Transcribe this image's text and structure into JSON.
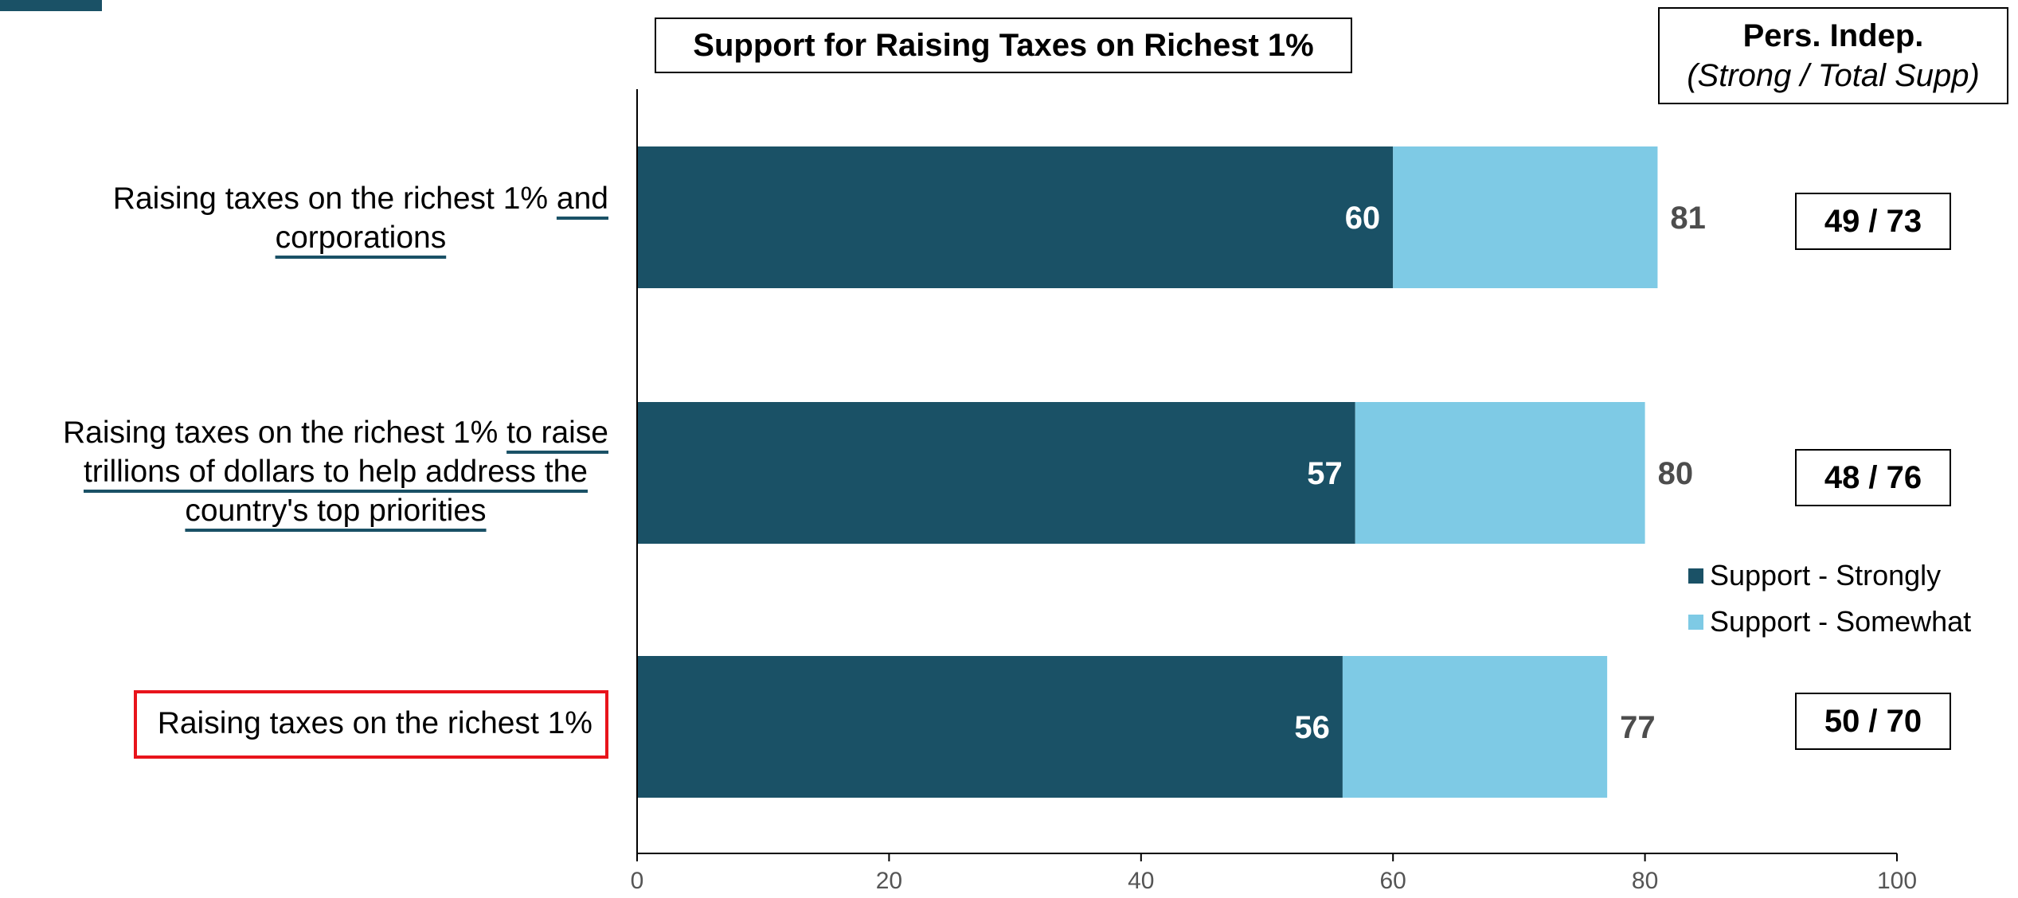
{
  "chart_data": {
    "type": "bar",
    "orientation": "horizontal",
    "stacked": true,
    "title": "Support for Raising Taxes on Richest 1%",
    "categories": [
      "Raising taxes on the richest 1% and corporations",
      "Raising taxes on the richest 1% to raise trillions of dollars to help address the country's top priorities",
      "Raising taxes on the richest 1%"
    ],
    "series": [
      {
        "name": "Support - Strongly",
        "color": "#1a5166",
        "values": [
          60,
          57,
          56
        ]
      },
      {
        "name": "Support - Somewhat",
        "color": "#7ecae5",
        "values": [
          21,
          23,
          21
        ]
      }
    ],
    "totals": [
      81,
      80,
      77
    ],
    "xlim": [
      0,
      100
    ],
    "xticks": [
      0,
      20,
      40,
      60,
      80,
      100
    ],
    "legend_position": "right",
    "grid": false,
    "highlighted_category": "Raising taxes on the richest 1%"
  },
  "labels": {
    "row0_lead": "Raising taxes on the richest 1% ",
    "row0_under1": "and",
    "row0_under2": "corporations",
    "row1_lead": "Raising taxes on the richest 1% ",
    "row1_under1": "to raise",
    "row1_under2": "trillions of dollars to help address the",
    "row1_under3": "country's top priorities",
    "row2_text": "Raising taxes on the richest 1%"
  },
  "pers_indep": {
    "header_line1": "Pers. Indep.",
    "header_line2": "(Strong / Total Supp)",
    "values": [
      "49 / 73",
      "48 / 76",
      "50 / 70"
    ]
  }
}
